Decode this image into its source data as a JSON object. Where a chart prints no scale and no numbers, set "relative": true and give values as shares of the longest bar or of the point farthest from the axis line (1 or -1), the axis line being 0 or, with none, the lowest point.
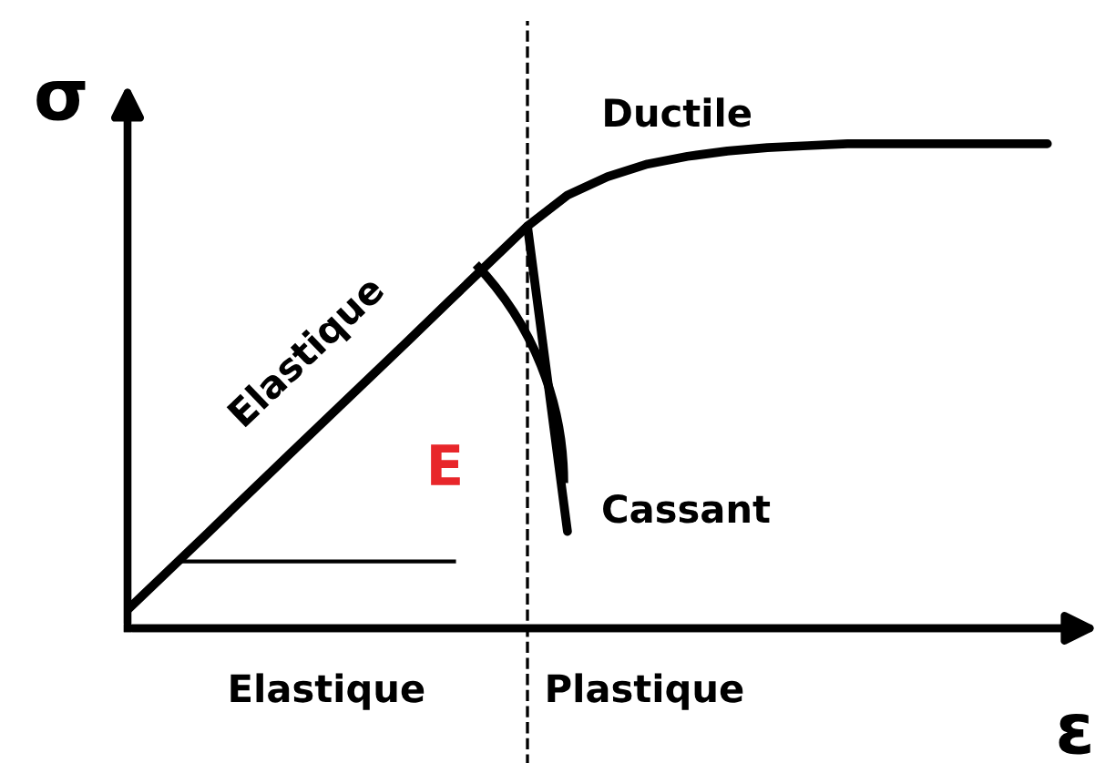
{
  "chart_data": {
    "type": "line",
    "relative": true,
    "xlabel": "ε",
    "ylabel": "σ",
    "categories": [
      null,
      null,
      null,
      null,
      null,
      null,
      null,
      null,
      null,
      null,
      null,
      null,
      null,
      null,
      null,
      null,
      null,
      null,
      null,
      null,
      null,
      null,
      null,
      null
    ],
    "series": [
      {
        "color": "#000000",
        "values": [
          0.038,
          0.117,
          0.196,
          0.276,
          0.355,
          0.434,
          0.513,
          0.592,
          0.672,
          0.751,
          0.83,
          0.894,
          0.932,
          0.958,
          0.974,
          0.985,
          0.992,
          0.996,
          1,
          1,
          1,
          1,
          1,
          1
        ]
      },
      {
        "color": "#000000",
        "values": [
          null,
          null,
          null,
          null,
          null,
          null,
          null,
          null,
          null,
          null,
          0.83,
          0.2,
          null,
          null,
          null,
          null,
          null,
          null,
          null,
          null,
          null,
          null,
          null,
          null
        ]
      }
    ],
    "annotations": [
      "Elastique",
      "E",
      "Cassant",
      "Ductile",
      "Elastique",
      "Plastique"
    ],
    "marker": "none",
    "line_style": "solid"
  }
}
